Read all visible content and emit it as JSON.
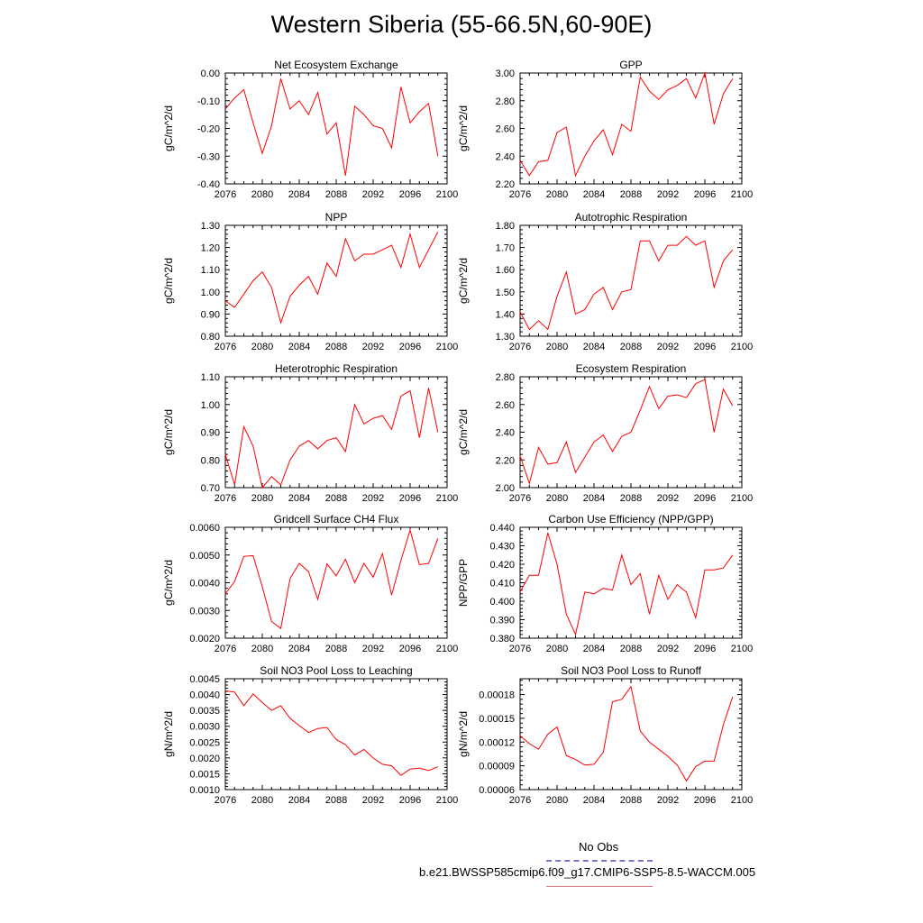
{
  "title": "Western Siberia (55-66.5N,60-90E)",
  "legend": {
    "entries": [
      {
        "label": "No Obs",
        "color": "#7777cc",
        "style": "dashed"
      },
      {
        "label": "b.e21.BWSSP585cmip6.f09_g17.CMIP6-SSP5-8.5-WACCM.005",
        "color": "#e08080",
        "style": "solid"
      }
    ]
  },
  "colors": {
    "series": "#ff0000",
    "axis": "#000000"
  },
  "chart_data": [
    {
      "type": "line",
      "title": "Net Ecosystem Exchange",
      "ylabel": "gC/m^2/d",
      "xlim": [
        2076,
        2100
      ],
      "ylim": [
        -0.4,
        0.0
      ],
      "xticks": [
        2076,
        2080,
        2084,
        2088,
        2092,
        2096,
        2100
      ],
      "yticks": [
        -0.4,
        -0.3,
        -0.2,
        -0.1,
        0.0
      ],
      "ytick_labels": [
        "-0.40",
        "-0.30",
        "-0.20",
        "-0.10",
        "0.00"
      ],
      "x": [
        2076,
        2077,
        2078,
        2079,
        2080,
        2081,
        2082,
        2083,
        2084,
        2085,
        2086,
        2087,
        2088,
        2089,
        2090,
        2091,
        2092,
        2093,
        2094,
        2095,
        2096,
        2097,
        2098,
        2099
      ],
      "values": [
        -0.13,
        -0.09,
        -0.06,
        -0.18,
        -0.29,
        -0.19,
        -0.02,
        -0.13,
        -0.1,
        -0.15,
        -0.07,
        -0.22,
        -0.18,
        -0.37,
        -0.12,
        -0.15,
        -0.19,
        -0.2,
        -0.27,
        -0.05,
        -0.18,
        -0.14,
        -0.11,
        -0.3
      ]
    },
    {
      "type": "line",
      "title": "GPP",
      "ylabel": "gC/m^2/d",
      "xlim": [
        2076,
        2100
      ],
      "ylim": [
        2.2,
        3.0
      ],
      "xticks": [
        2076,
        2080,
        2084,
        2088,
        2092,
        2096,
        2100
      ],
      "yticks": [
        2.2,
        2.4,
        2.6,
        2.8,
        3.0
      ],
      "ytick_labels": [
        "2.20",
        "2.40",
        "2.60",
        "2.80",
        "3.00"
      ],
      "x": [
        2076,
        2077,
        2078,
        2079,
        2080,
        2081,
        2082,
        2083,
        2084,
        2085,
        2086,
        2087,
        2088,
        2089,
        2090,
        2091,
        2092,
        2093,
        2094,
        2095,
        2096,
        2097,
        2098,
        2099
      ],
      "values": [
        2.37,
        2.26,
        2.36,
        2.37,
        2.57,
        2.61,
        2.26,
        2.4,
        2.51,
        2.59,
        2.41,
        2.63,
        2.58,
        2.97,
        2.87,
        2.81,
        2.88,
        2.91,
        2.96,
        2.82,
        3.0,
        2.63,
        2.85,
        2.96
      ]
    },
    {
      "type": "line",
      "title": "NPP",
      "ylabel": "gC/m^2/d",
      "xlim": [
        2076,
        2100
      ],
      "ylim": [
        0.8,
        1.3
      ],
      "xticks": [
        2076,
        2080,
        2084,
        2088,
        2092,
        2096,
        2100
      ],
      "yticks": [
        0.8,
        0.9,
        1.0,
        1.1,
        1.2,
        1.3
      ],
      "ytick_labels": [
        "0.80",
        "0.90",
        "1.00",
        "1.10",
        "1.20",
        "1.30"
      ],
      "x": [
        2076,
        2077,
        2078,
        2079,
        2080,
        2081,
        2082,
        2083,
        2084,
        2085,
        2086,
        2087,
        2088,
        2089,
        2090,
        2091,
        2092,
        2093,
        2094,
        2095,
        2096,
        2097,
        2098,
        2099
      ],
      "values": [
        0.96,
        0.93,
        0.99,
        1.05,
        1.09,
        1.02,
        0.86,
        0.98,
        1.03,
        1.07,
        0.99,
        1.13,
        1.07,
        1.24,
        1.14,
        1.17,
        1.17,
        1.19,
        1.21,
        1.11,
        1.26,
        1.11,
        1.19,
        1.27
      ]
    },
    {
      "type": "line",
      "title": "Autotrophic Respiration",
      "ylabel": "gC/m^2/d",
      "xlim": [
        2076,
        2100
      ],
      "ylim": [
        1.3,
        1.8
      ],
      "xticks": [
        2076,
        2080,
        2084,
        2088,
        2092,
        2096,
        2100
      ],
      "yticks": [
        1.3,
        1.4,
        1.5,
        1.6,
        1.7,
        1.8
      ],
      "ytick_labels": [
        "1.30",
        "1.40",
        "1.50",
        "1.60",
        "1.70",
        "1.80"
      ],
      "x": [
        2076,
        2077,
        2078,
        2079,
        2080,
        2081,
        2082,
        2083,
        2084,
        2085,
        2086,
        2087,
        2088,
        2089,
        2090,
        2091,
        2092,
        2093,
        2094,
        2095,
        2096,
        2097,
        2098,
        2099
      ],
      "values": [
        1.41,
        1.33,
        1.37,
        1.33,
        1.48,
        1.59,
        1.4,
        1.42,
        1.49,
        1.52,
        1.42,
        1.5,
        1.51,
        1.73,
        1.73,
        1.64,
        1.71,
        1.71,
        1.75,
        1.71,
        1.73,
        1.52,
        1.64,
        1.69
      ]
    },
    {
      "type": "line",
      "title": "Heterotrophic Respiration",
      "ylabel": "gC/m^2/d",
      "xlim": [
        2076,
        2100
      ],
      "ylim": [
        0.7,
        1.1
      ],
      "xticks": [
        2076,
        2080,
        2084,
        2088,
        2092,
        2096,
        2100
      ],
      "yticks": [
        0.7,
        0.8,
        0.9,
        1.0,
        1.1
      ],
      "ytick_labels": [
        "0.70",
        "0.80",
        "0.90",
        "1.00",
        "1.10"
      ],
      "x": [
        2076,
        2077,
        2078,
        2079,
        2080,
        2081,
        2082,
        2083,
        2084,
        2085,
        2086,
        2087,
        2088,
        2089,
        2090,
        2091,
        2092,
        2093,
        2094,
        2095,
        2096,
        2097,
        2098,
        2099
      ],
      "values": [
        0.82,
        0.71,
        0.92,
        0.85,
        0.7,
        0.74,
        0.71,
        0.8,
        0.85,
        0.87,
        0.84,
        0.87,
        0.88,
        0.83,
        1.0,
        0.93,
        0.95,
        0.96,
        0.91,
        1.03,
        1.05,
        0.88,
        1.06,
        0.9
      ]
    },
    {
      "type": "line",
      "title": "Ecosystem Respiration",
      "ylabel": "gC/m^2/d",
      "xlim": [
        2076,
        2100
      ],
      "ylim": [
        2.0,
        2.8
      ],
      "xticks": [
        2076,
        2080,
        2084,
        2088,
        2092,
        2096,
        2100
      ],
      "yticks": [
        2.0,
        2.2,
        2.4,
        2.6,
        2.8
      ],
      "ytick_labels": [
        "2.00",
        "2.20",
        "2.40",
        "2.60",
        "2.80"
      ],
      "x": [
        2076,
        2077,
        2078,
        2079,
        2080,
        2081,
        2082,
        2083,
        2084,
        2085,
        2086,
        2087,
        2088,
        2089,
        2090,
        2091,
        2092,
        2093,
        2094,
        2095,
        2096,
        2097,
        2098,
        2099
      ],
      "values": [
        2.23,
        2.03,
        2.29,
        2.17,
        2.18,
        2.33,
        2.11,
        2.22,
        2.33,
        2.38,
        2.26,
        2.37,
        2.4,
        2.56,
        2.73,
        2.57,
        2.66,
        2.67,
        2.65,
        2.75,
        2.78,
        2.4,
        2.71,
        2.59
      ]
    },
    {
      "type": "line",
      "title": "Gridcell Surface CH4 Flux",
      "ylabel": "gC/m^2/d",
      "xlim": [
        2076,
        2100
      ],
      "ylim": [
        0.002,
        0.006
      ],
      "xticks": [
        2076,
        2080,
        2084,
        2088,
        2092,
        2096,
        2100
      ],
      "yticks": [
        0.002,
        0.003,
        0.004,
        0.005,
        0.006
      ],
      "ytick_labels": [
        "0.0020",
        "0.0030",
        "0.0040",
        "0.0050",
        "0.0060"
      ],
      "x": [
        2076,
        2077,
        2078,
        2079,
        2080,
        2081,
        2082,
        2083,
        2084,
        2085,
        2086,
        2087,
        2088,
        2089,
        2090,
        2091,
        2092,
        2093,
        2094,
        2095,
        2096,
        2097,
        2098,
        2099
      ],
      "values": [
        0.0036,
        0.00405,
        0.00495,
        0.00498,
        0.00385,
        0.0026,
        0.00235,
        0.00415,
        0.0047,
        0.0044,
        0.0034,
        0.00468,
        0.00425,
        0.00485,
        0.004,
        0.0047,
        0.0042,
        0.00505,
        0.00355,
        0.0048,
        0.0059,
        0.00465,
        0.0047,
        0.0056
      ]
    },
    {
      "type": "line",
      "title": "Carbon Use Efficiency (NPP/GPP)",
      "ylabel": "NPP/GPP",
      "xlim": [
        2076,
        2100
      ],
      "ylim": [
        0.38,
        0.44
      ],
      "xticks": [
        2076,
        2080,
        2084,
        2088,
        2092,
        2096,
        2100
      ],
      "yticks": [
        0.38,
        0.39,
        0.4,
        0.41,
        0.42,
        0.43,
        0.44
      ],
      "ytick_labels": [
        "0.380",
        "0.390",
        "0.400",
        "0.410",
        "0.420",
        "0.430",
        "0.440"
      ],
      "x": [
        2076,
        2077,
        2078,
        2079,
        2080,
        2081,
        2082,
        2083,
        2084,
        2085,
        2086,
        2087,
        2088,
        2089,
        2090,
        2091,
        2092,
        2093,
        2094,
        2095,
        2096,
        2097,
        2098,
        2099
      ],
      "values": [
        0.405,
        0.414,
        0.414,
        0.437,
        0.42,
        0.393,
        0.382,
        0.405,
        0.404,
        0.407,
        0.406,
        0.425,
        0.409,
        0.415,
        0.393,
        0.414,
        0.401,
        0.409,
        0.405,
        0.391,
        0.417,
        0.417,
        0.418,
        0.425
      ]
    },
    {
      "type": "line",
      "title": "Soil NO3 Pool Loss to Leaching",
      "ylabel": "gN/m^2/d",
      "xlim": [
        2076,
        2100
      ],
      "ylim": [
        0.001,
        0.0045
      ],
      "xticks": [
        2076,
        2080,
        2084,
        2088,
        2092,
        2096,
        2100
      ],
      "yticks": [
        0.001,
        0.0015,
        0.002,
        0.0025,
        0.003,
        0.0035,
        0.004,
        0.0045
      ],
      "ytick_labels": [
        "0.0010",
        "0.0015",
        "0.0020",
        "0.0025",
        "0.0030",
        "0.0035",
        "0.0040",
        "0.0045"
      ],
      "x": [
        2076,
        2077,
        2078,
        2079,
        2080,
        2081,
        2082,
        2083,
        2084,
        2085,
        2086,
        2087,
        2088,
        2089,
        2090,
        2091,
        2092,
        2093,
        2094,
        2095,
        2096,
        2097,
        2098,
        2099
      ],
      "values": [
        0.00412,
        0.00408,
        0.00365,
        0.00402,
        0.00375,
        0.0035,
        0.00365,
        0.00325,
        0.00302,
        0.0028,
        0.00293,
        0.00296,
        0.00258,
        0.00242,
        0.00209,
        0.00227,
        0.002,
        0.0018,
        0.00175,
        0.00145,
        0.00165,
        0.00168,
        0.0016,
        0.00172
      ]
    },
    {
      "type": "line",
      "title": "Soil NO3 Pool Loss to Runoff",
      "ylabel": "gN/m^2/d",
      "xlim": [
        2076,
        2100
      ],
      "ylim": [
        6e-05,
        0.0002
      ],
      "xticks": [
        2076,
        2080,
        2084,
        2088,
        2092,
        2096,
        2100
      ],
      "yticks": [
        6e-05,
        9e-05,
        0.00012,
        0.00015,
        0.00018
      ],
      "ytick_labels": [
        "0.00006",
        "0.00009",
        "0.00012",
        "0.00015",
        "0.00018"
      ],
      "x": [
        2076,
        2077,
        2078,
        2079,
        2080,
        2081,
        2082,
        2083,
        2084,
        2085,
        2086,
        2087,
        2088,
        2089,
        2090,
        2091,
        2092,
        2093,
        2094,
        2095,
        2096,
        2097,
        2098,
        2099
      ],
      "values": [
        0.000128,
        0.000118,
        0.000111,
        0.00013,
        0.000139,
        0.000103,
        9.8e-05,
        9.1e-05,
        9.2e-05,
        0.000107,
        0.000171,
        0.000174,
        0.00019,
        0.000134,
        0.00012,
        0.000111,
        0.000102,
        9.1e-05,
        7.1e-05,
        8.9e-05,
        9.6e-05,
        9.6e-05,
        0.000142,
        0.000177
      ]
    }
  ]
}
